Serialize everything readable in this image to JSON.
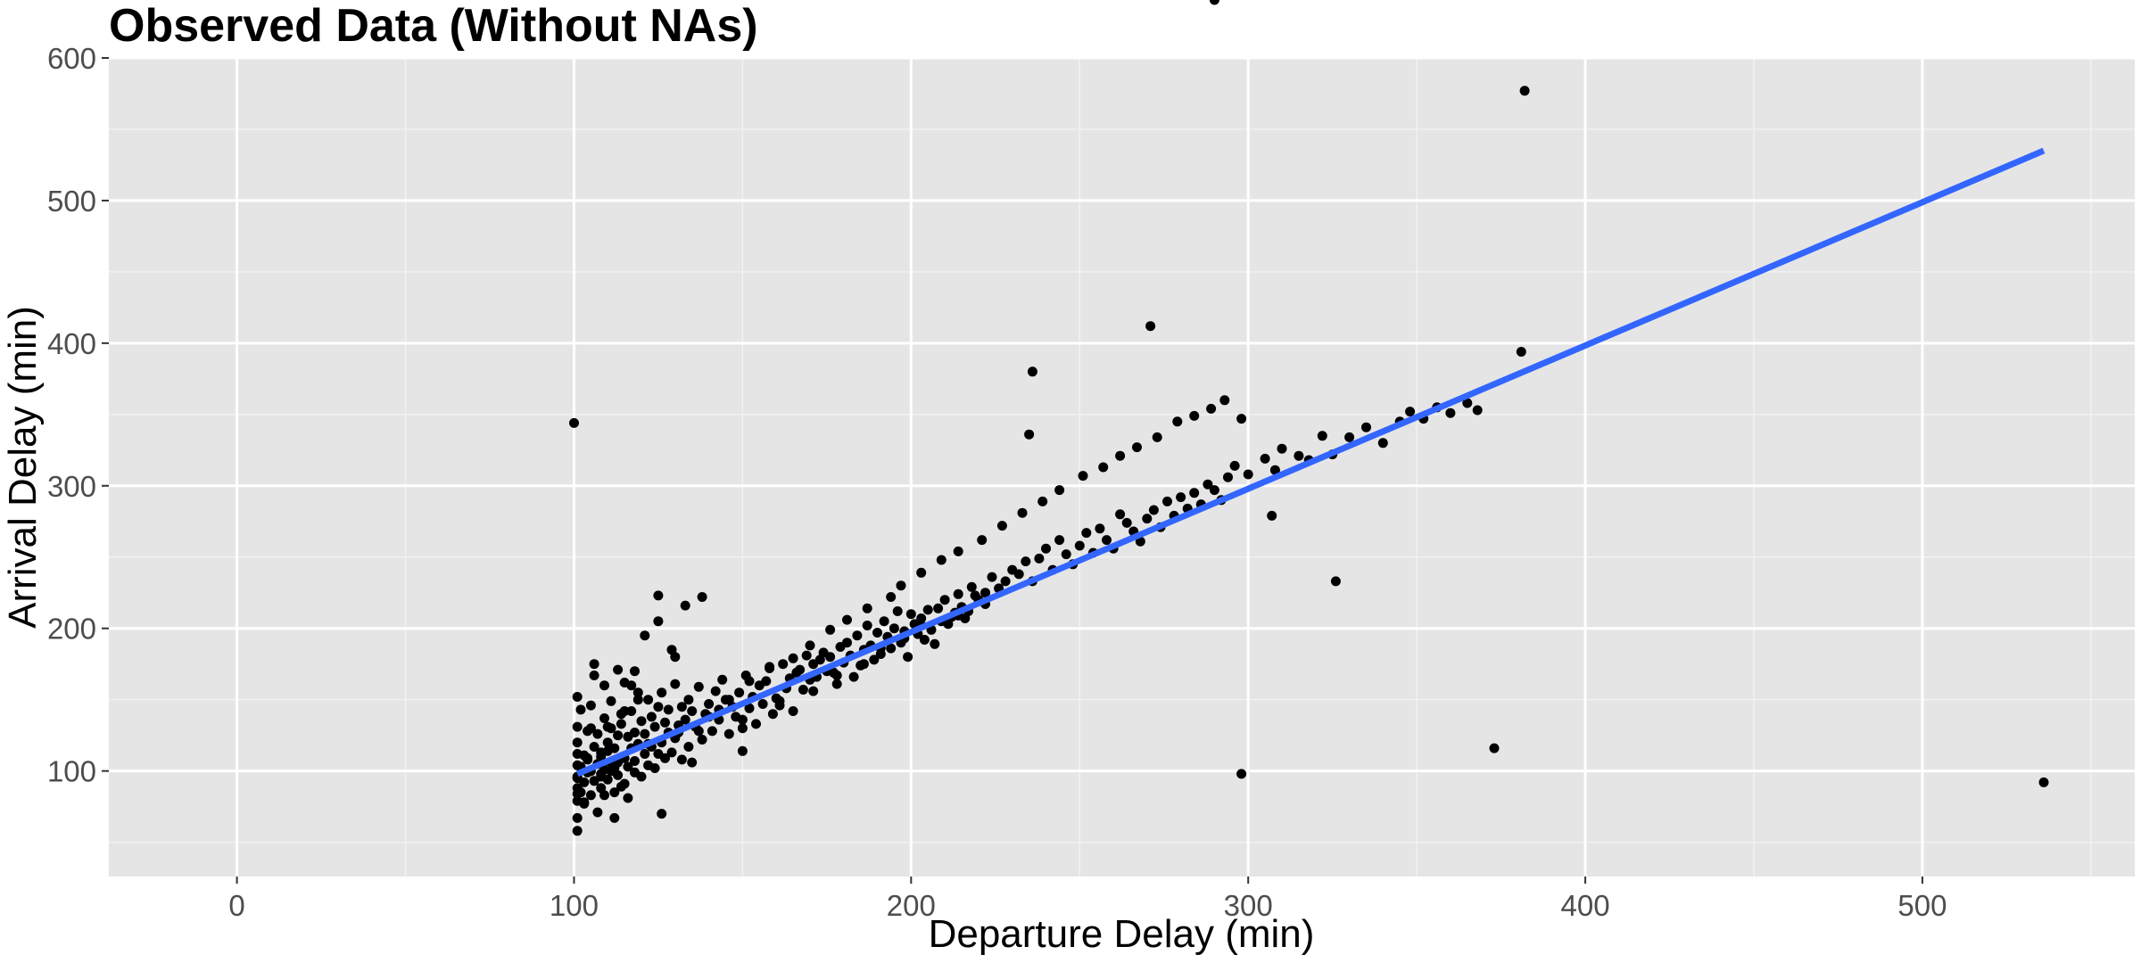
{
  "chart_data": {
    "type": "scatter",
    "title": "Observed Data (Without NAs)",
    "xlabel": "Departure Delay (min)",
    "ylabel": "Arrival Delay (min)",
    "xlim": [
      -38,
      563
    ],
    "ylim": [
      26,
      600
    ],
    "x_ticks": [
      0,
      100,
      200,
      300,
      400,
      500
    ],
    "y_ticks": [
      100,
      200,
      300,
      400,
      500,
      600
    ],
    "grid": true,
    "point_color": "#000000",
    "fit_line": {
      "color": "#3366ff",
      "x": [
        101,
        536
      ],
      "y": [
        98,
        535
      ]
    },
    "points_x": [
      101,
      101,
      101,
      101,
      101,
      101,
      101,
      101,
      101,
      101,
      101,
      102,
      102,
      102,
      103,
      103,
      103,
      104,
      104,
      104,
      105,
      105,
      105,
      106,
      106,
      106,
      107,
      107,
      107,
      108,
      108,
      108,
      109,
      109,
      109,
      110,
      110,
      110,
      111,
      111,
      111,
      112,
      112,
      112,
      113,
      113,
      113,
      114,
      114,
      115,
      115,
      115,
      116,
      116,
      116,
      117,
      117,
      118,
      118,
      118,
      119,
      119,
      120,
      120,
      121,
      121,
      122,
      122,
      123,
      123,
      124,
      124,
      125,
      125,
      126,
      126,
      127,
      127,
      128,
      128,
      129,
      130,
      130,
      131,
      132,
      132,
      133,
      134,
      134,
      135,
      136,
      137,
      138,
      139,
      140,
      141,
      142,
      143,
      144,
      145,
      146,
      147,
      148,
      149,
      150,
      151,
      152,
      153,
      154,
      155,
      156,
      157,
      158,
      159,
      160,
      161,
      162,
      163,
      164,
      165,
      166,
      167,
      168,
      169,
      170,
      171,
      172,
      173,
      174,
      175,
      176,
      177,
      178,
      179,
      180,
      181,
      182,
      183,
      184,
      185,
      186,
      187,
      188,
      189,
      190,
      191,
      192,
      193,
      194,
      195,
      196,
      197,
      198,
      199,
      200,
      201,
      202,
      203,
      204,
      205,
      206,
      207,
      208,
      209,
      210,
      211,
      212,
      213,
      214,
      215,
      216,
      217,
      218,
      219,
      220,
      222,
      224,
      226,
      228,
      230,
      232,
      234,
      236,
      238,
      240,
      242,
      244,
      246,
      248,
      250,
      252,
      254,
      256,
      258,
      260,
      262,
      264,
      266,
      268,
      270,
      272,
      274,
      276,
      278,
      280,
      282,
      284,
      286,
      288,
      290,
      292,
      294,
      296,
      300,
      305,
      308,
      310,
      315,
      318,
      322,
      325,
      330,
      335,
      340,
      345,
      348,
      352,
      356,
      360,
      365,
      368,
      373,
      106,
      109,
      114,
      118,
      121,
      125,
      129,
      138,
      133,
      143,
      130,
      117,
      150,
      105,
      111,
      135,
      112,
      103,
      104,
      108,
      110,
      115,
      119,
      126,
      101,
      108,
      113,
      122,
      131,
      140,
      146,
      152,
      158,
      165,
      170,
      176,
      181,
      187,
      194,
      197,
      203,
      209,
      214,
      221,
      227,
      233,
      239,
      244,
      251,
      257,
      262,
      267,
      273,
      279,
      284,
      289,
      293,
      298,
      125,
      137,
      150,
      161,
      171,
      178,
      186,
      191,
      198,
      203,
      214,
      222,
      235,
      236,
      271,
      381,
      382,
      536,
      100,
      298,
      307,
      326,
      290
    ],
    "points_y": [
      96,
      88,
      104,
      79,
      112,
      131,
      58,
      67,
      95,
      120,
      152,
      85,
      103,
      143,
      92,
      111,
      77,
      99,
      128,
      108,
      83,
      146,
      100,
      117,
      93,
      167,
      105,
      71,
      126,
      88,
      110,
      98,
      137,
      101,
      83,
      120,
      94,
      114,
      149,
      106,
      130,
      85,
      116,
      102,
      171,
      125,
      97,
      89,
      133,
      109,
      162,
      91,
      124,
      103,
      81,
      142,
      116,
      99,
      127,
      107,
      155,
      119,
      135,
      96,
      126,
      112,
      150,
      104,
      138,
      117,
      131,
      102,
      223,
      145,
      120,
      155,
      109,
      134,
      127,
      143,
      113,
      161,
      123,
      132,
      145,
      108,
      136,
      117,
      150,
      142,
      131,
      159,
      122,
      140,
      147,
      128,
      156,
      136,
      164,
      150,
      126,
      145,
      138,
      155,
      130,
      167,
      144,
      152,
      133,
      160,
      147,
      163,
      172,
      140,
      151,
      146,
      175,
      158,
      165,
      142,
      169,
      171,
      157,
      181,
      164,
      175,
      166,
      178,
      183,
      170,
      180,
      169,
      161,
      187,
      176,
      190,
      181,
      166,
      195,
      174,
      185,
      202,
      188,
      178,
      197,
      182,
      205,
      194,
      186,
      200,
      212,
      190,
      198,
      180,
      210,
      203,
      196,
      207,
      192,
      213,
      199,
      189,
      214,
      205,
      220,
      203,
      208,
      211,
      224,
      215,
      207,
      212,
      229,
      223,
      220,
      225,
      236,
      228,
      233,
      241,
      238,
      247,
      233,
      249,
      256,
      241,
      262,
      252,
      245,
      258,
      267,
      253,
      270,
      262,
      256,
      280,
      274,
      268,
      261,
      277,
      283,
      271,
      289,
      279,
      292,
      284,
      295,
      287,
      301,
      297,
      290,
      306,
      314,
      308,
      319,
      311,
      326,
      321,
      318,
      335,
      322,
      334,
      341,
      330,
      345,
      352,
      347,
      355,
      351,
      358,
      353,
      116,
      175,
      160,
      140,
      170,
      195,
      205,
      185,
      222,
      216,
      143,
      180,
      160,
      114,
      130,
      100,
      106,
      67,
      78,
      109,
      113,
      131,
      142,
      150,
      70,
      84,
      96,
      106,
      119,
      127,
      138,
      150,
      163,
      173,
      179,
      188,
      199,
      206,
      214,
      222,
      230,
      239,
      248,
      254,
      262,
      272,
      281,
      289,
      297,
      307,
      313,
      321,
      327,
      334,
      345,
      349,
      354,
      360,
      98,
      112,
      128,
      136,
      149,
      156,
      167,
      175,
      186,
      193,
      202,
      209,
      217,
      336,
      380,
      412,
      394,
      577,
      92,
      344,
      347,
      279,
      233
    ]
  }
}
